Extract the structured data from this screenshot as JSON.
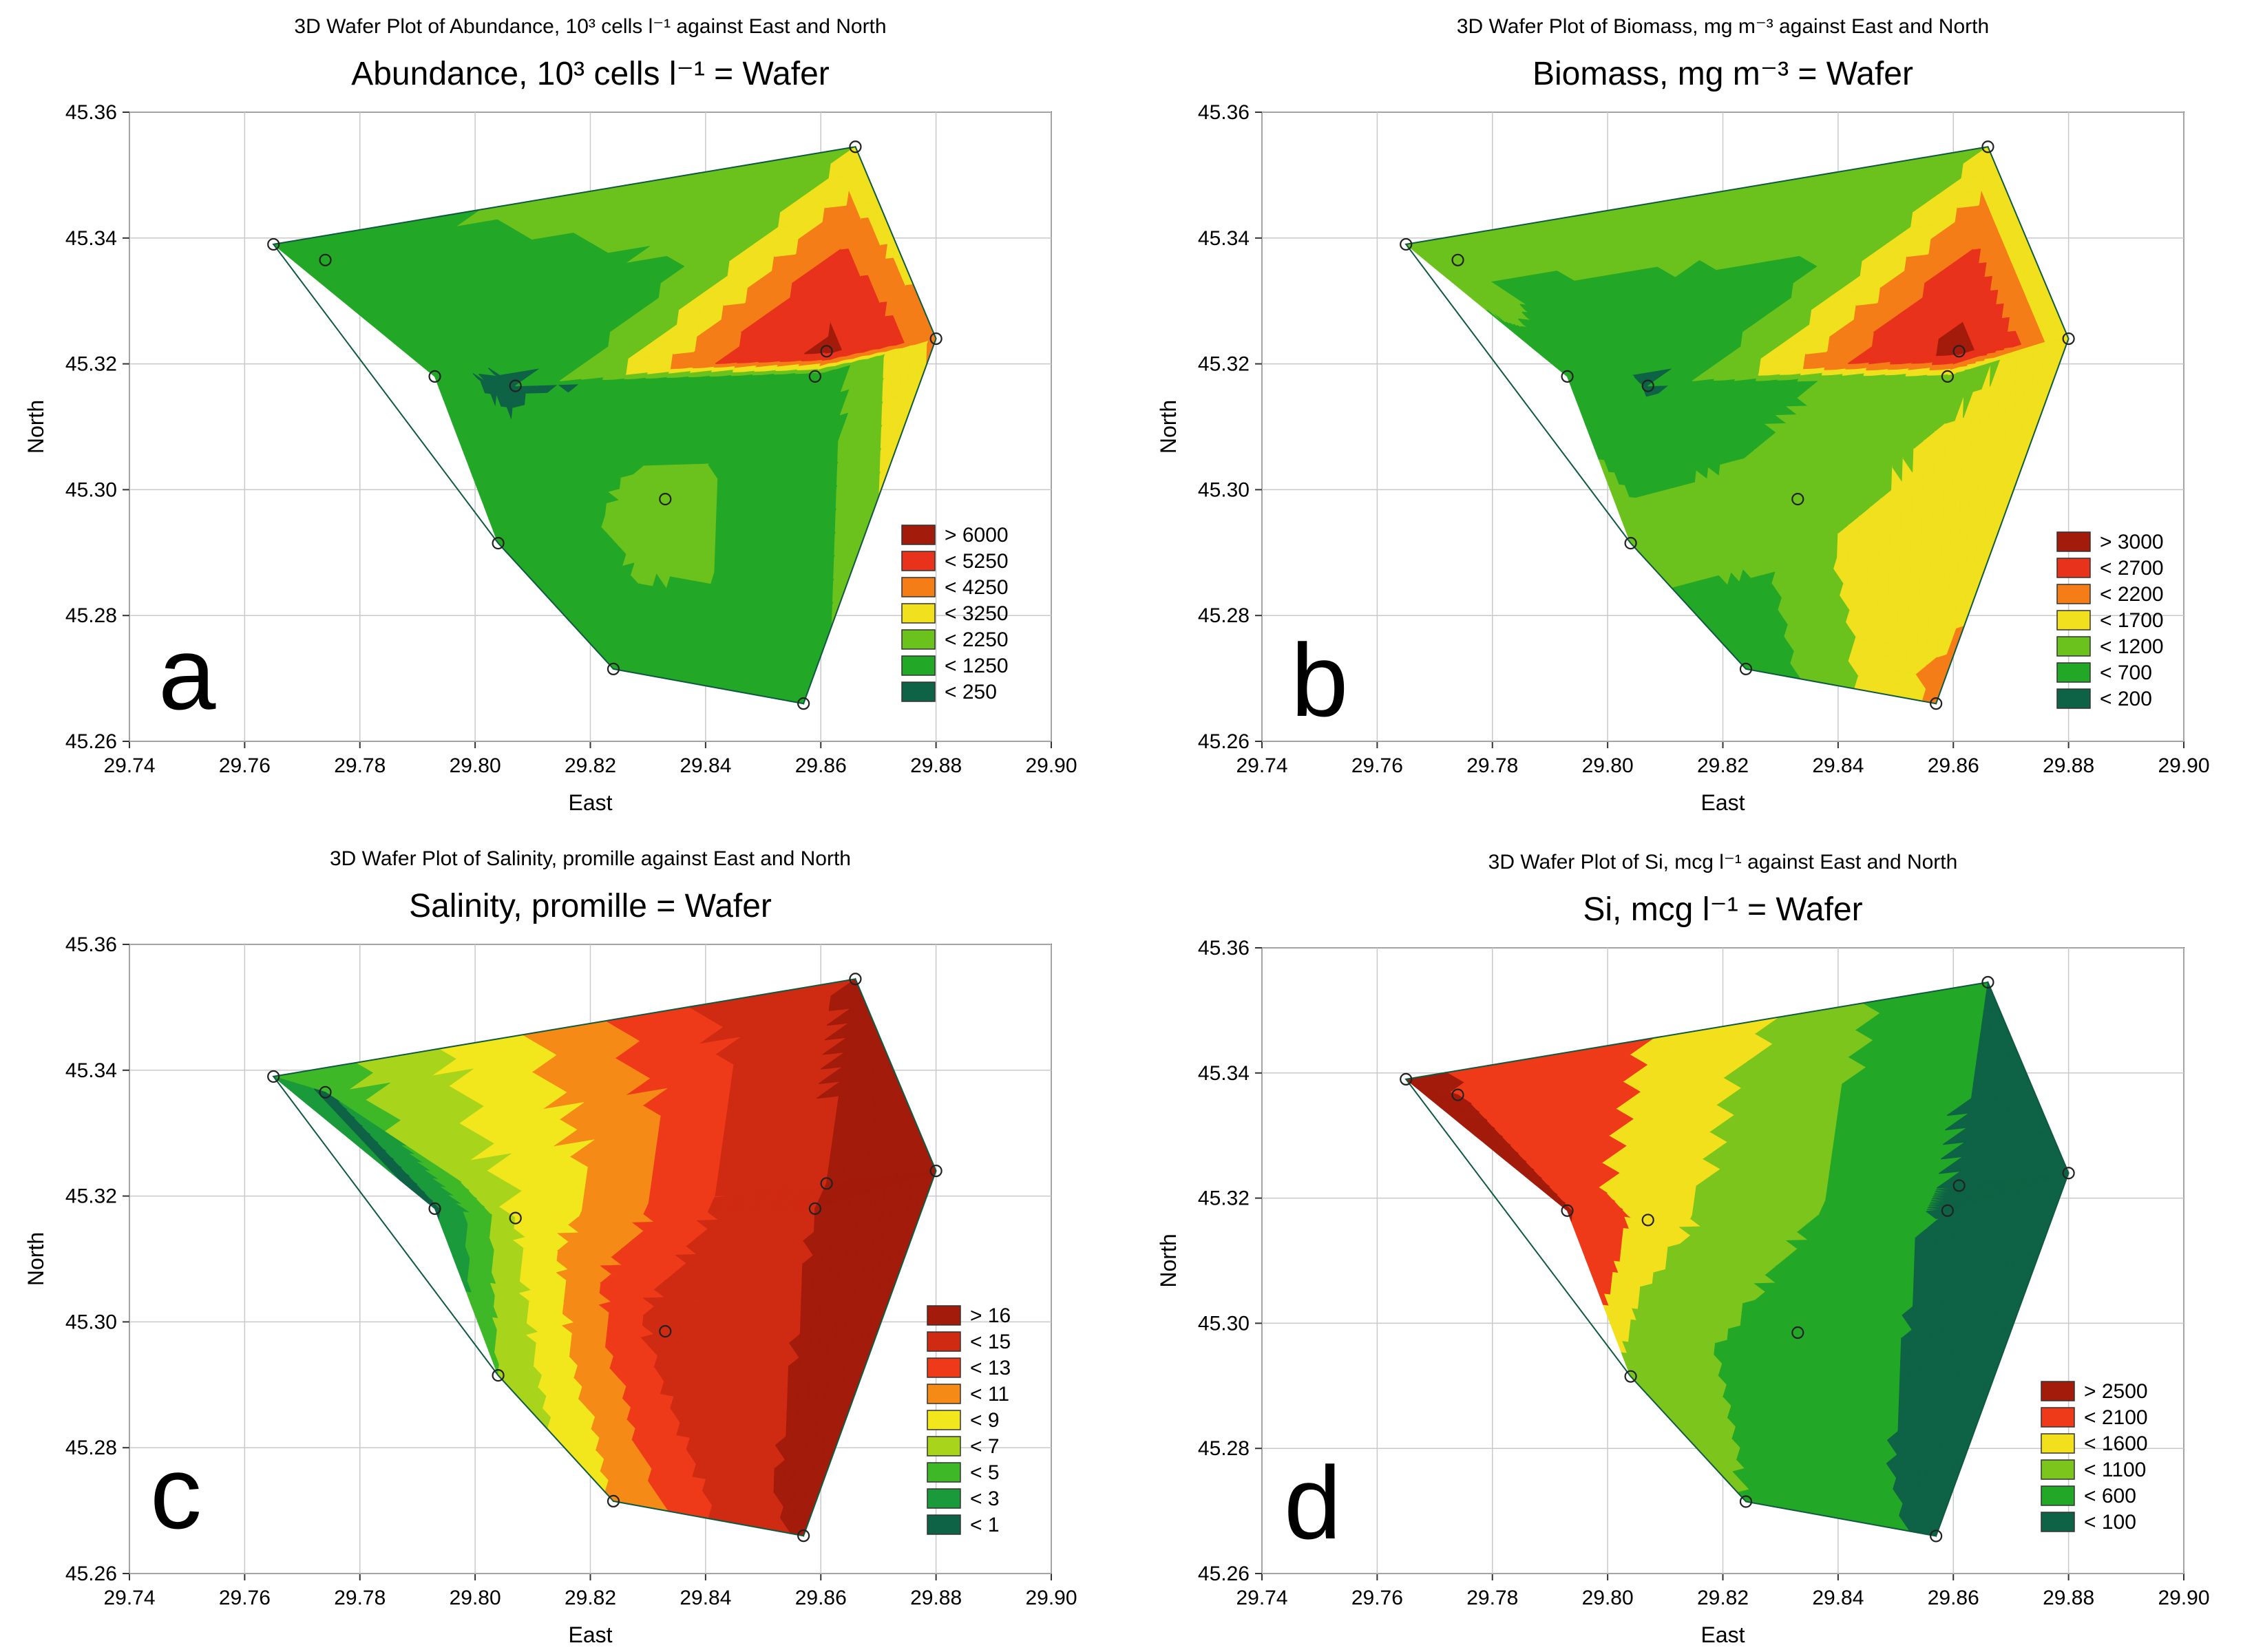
{
  "chart_data": [
    {
      "type": "contour",
      "panel_letter": "a",
      "suptitle": "3D Wafer Plot of Abundance, 10³ cells  l⁻¹ against East and North",
      "title": "Abundance, 10³ cells  l⁻¹ = Wafer",
      "xlabel": "East",
      "ylabel": "North",
      "xlim": [
        29.74,
        29.9
      ],
      "ylim": [
        45.26,
        45.36
      ],
      "xticks": [
        "29.74",
        "29.76",
        "29.78",
        "29.80",
        "29.82",
        "29.84",
        "29.86",
        "29.88",
        "29.90"
      ],
      "yticks": [
        "45.26",
        "45.28",
        "45.30",
        "45.32",
        "45.34",
        "45.36"
      ],
      "legend": [
        {
          "label": "> 6000",
          "color": "#a31b0b"
        },
        {
          "label": "< 5250",
          "color": "#e8321b"
        },
        {
          "label": "< 4250",
          "color": "#f57d17"
        },
        {
          "label": "< 3250",
          "color": "#f0e01d"
        },
        {
          "label": "< 2250",
          "color": "#6cc21d"
        },
        {
          "label": "< 1250",
          "color": "#22a826"
        },
        {
          "label": "< 250",
          "color": "#0e6245"
        }
      ],
      "stations": [
        {
          "x": 29.765,
          "y": 45.339,
          "v": 800
        },
        {
          "x": 29.774,
          "y": 45.3365,
          "v": 1100
        },
        {
          "x": 29.793,
          "y": 45.318,
          "v": 350
        },
        {
          "x": 29.807,
          "y": 45.3165,
          "v": 150
        },
        {
          "x": 29.804,
          "y": 45.2915,
          "v": 700
        },
        {
          "x": 29.833,
          "y": 45.2985,
          "v": 1600
        },
        {
          "x": 29.824,
          "y": 45.2715,
          "v": 900
        },
        {
          "x": 29.857,
          "y": 45.266,
          "v": 700
        },
        {
          "x": 29.859,
          "y": 45.318,
          "v": 500
        },
        {
          "x": 29.861,
          "y": 45.322,
          "v": 6500
        },
        {
          "x": 29.866,
          "y": 45.3545,
          "v": 2300
        },
        {
          "x": 29.88,
          "y": 45.324,
          "v": 3500
        }
      ]
    },
    {
      "type": "contour",
      "panel_letter": "b",
      "suptitle": "3D Wafer Plot of Biomass, mg m⁻³ against East and North",
      "title": "Biomass, mg m⁻³ = Wafer",
      "xlabel": "East",
      "ylabel": "North",
      "xlim": [
        29.74,
        29.9
      ],
      "ylim": [
        45.26,
        45.36
      ],
      "xticks": [
        "29.74",
        "29.76",
        "29.78",
        "29.80",
        "29.82",
        "29.84",
        "29.86",
        "29.88",
        "29.90"
      ],
      "yticks": [
        "45.26",
        "45.28",
        "45.30",
        "45.32",
        "45.34",
        "45.36"
      ],
      "legend": [
        {
          "label": "> 3000",
          "color": "#a31b0b"
        },
        {
          "label": "< 2700",
          "color": "#e8321b"
        },
        {
          "label": "< 2200",
          "color": "#f57d17"
        },
        {
          "label": "< 1700",
          "color": "#f0e01d"
        },
        {
          "label": "< 1200",
          "color": "#6cc21d"
        },
        {
          "label": "< 700",
          "color": "#22a826"
        },
        {
          "label": "< 200",
          "color": "#0e6245"
        }
      ],
      "stations": [
        {
          "x": 29.765,
          "y": 45.339,
          "v": 900
        },
        {
          "x": 29.774,
          "y": 45.3365,
          "v": 1000
        },
        {
          "x": 29.793,
          "y": 45.318,
          "v": 500
        },
        {
          "x": 29.807,
          "y": 45.3165,
          "v": 150
        },
        {
          "x": 29.804,
          "y": 45.2915,
          "v": 900
        },
        {
          "x": 29.833,
          "y": 45.2985,
          "v": 1000
        },
        {
          "x": 29.824,
          "y": 45.2715,
          "v": 300
        },
        {
          "x": 29.857,
          "y": 45.266,
          "v": 1800
        },
        {
          "x": 29.859,
          "y": 45.318,
          "v": 1100
        },
        {
          "x": 29.861,
          "y": 45.322,
          "v": 3300
        },
        {
          "x": 29.866,
          "y": 45.3545,
          "v": 1200
        },
        {
          "x": 29.88,
          "y": 45.324,
          "v": 1300
        }
      ]
    },
    {
      "type": "contour",
      "panel_letter": "c",
      "suptitle": "3D Wafer Plot of Salinity, promille against East and North",
      "title": "Salinity, promille = Wafer",
      "xlabel": "East",
      "ylabel": "North",
      "xlim": [
        29.74,
        29.9
      ],
      "ylim": [
        45.26,
        45.36
      ],
      "xticks": [
        "29.74",
        "29.76",
        "29.78",
        "29.80",
        "29.82",
        "29.84",
        "29.86",
        "29.88",
        "29.90"
      ],
      "yticks": [
        "45.26",
        "45.28",
        "45.30",
        "45.32",
        "45.34",
        "45.36"
      ],
      "legend": [
        {
          "label": "> 16",
          "color": "#a31b0b"
        },
        {
          "label": "< 15",
          "color": "#cf2a12"
        },
        {
          "label": "< 13",
          "color": "#ef3a1a"
        },
        {
          "label": "< 11",
          "color": "#f58a16"
        },
        {
          "label": "< 9",
          "color": "#f2e61c"
        },
        {
          "label": "< 7",
          "color": "#a8d41c"
        },
        {
          "label": "< 5",
          "color": "#3fb828"
        },
        {
          "label": "< 3",
          "color": "#1a9a3a"
        },
        {
          "label": "< 1",
          "color": "#0e6245"
        }
      ],
      "stations": [
        {
          "x": 29.765,
          "y": 45.339,
          "v": 3
        },
        {
          "x": 29.774,
          "y": 45.3365,
          "v": 0.5
        },
        {
          "x": 29.793,
          "y": 45.318,
          "v": 0.5
        },
        {
          "x": 29.807,
          "y": 45.3165,
          "v": 7
        },
        {
          "x": 29.804,
          "y": 45.2915,
          "v": 5
        },
        {
          "x": 29.833,
          "y": 45.2985,
          "v": 14
        },
        {
          "x": 29.824,
          "y": 45.2715,
          "v": 9
        },
        {
          "x": 29.857,
          "y": 45.266,
          "v": 16.5
        },
        {
          "x": 29.859,
          "y": 45.318,
          "v": 16
        },
        {
          "x": 29.861,
          "y": 45.322,
          "v": 16
        },
        {
          "x": 29.866,
          "y": 45.3545,
          "v": 16.5
        },
        {
          "x": 29.88,
          "y": 45.324,
          "v": 17
        }
      ]
    },
    {
      "type": "contour",
      "panel_letter": "d",
      "suptitle": "3D Wafer Plot of Si, mcg l⁻¹ against East and North",
      "title": "Si, mcg l⁻¹ = Wafer",
      "xlabel": "East",
      "ylabel": "North",
      "xlim": [
        29.74,
        29.9
      ],
      "ylim": [
        45.26,
        45.36
      ],
      "xticks": [
        "29.74",
        "29.76",
        "29.78",
        "29.80",
        "29.82",
        "29.84",
        "29.86",
        "29.88",
        "29.90"
      ],
      "yticks": [
        "45.26",
        "45.28",
        "45.30",
        "45.32",
        "45.34",
        "45.36"
      ],
      "legend": [
        {
          "label": "> 2500",
          "color": "#a31b0b"
        },
        {
          "label": "< 2100",
          "color": "#ef3a1a"
        },
        {
          "label": "< 1600",
          "color": "#f2e01c"
        },
        {
          "label": "< 1100",
          "color": "#7cc51c"
        },
        {
          "label": "< 600",
          "color": "#22a826"
        },
        {
          "label": "< 100",
          "color": "#0e6245"
        }
      ],
      "stations": [
        {
          "x": 29.765,
          "y": 45.339,
          "v": 2700
        },
        {
          "x": 29.774,
          "y": 45.3365,
          "v": 2600
        },
        {
          "x": 29.793,
          "y": 45.318,
          "v": 2600
        },
        {
          "x": 29.807,
          "y": 45.3165,
          "v": 1300
        },
        {
          "x": 29.804,
          "y": 45.2915,
          "v": 900
        },
        {
          "x": 29.833,
          "y": 45.2985,
          "v": 300
        },
        {
          "x": 29.824,
          "y": 45.2715,
          "v": 600
        },
        {
          "x": 29.857,
          "y": 45.266,
          "v": 0
        },
        {
          "x": 29.859,
          "y": 45.318,
          "v": 50
        },
        {
          "x": 29.861,
          "y": 45.322,
          "v": 50
        },
        {
          "x": 29.866,
          "y": 45.3545,
          "v": 100
        },
        {
          "x": 29.88,
          "y": 45.324,
          "v": 0
        }
      ]
    }
  ]
}
